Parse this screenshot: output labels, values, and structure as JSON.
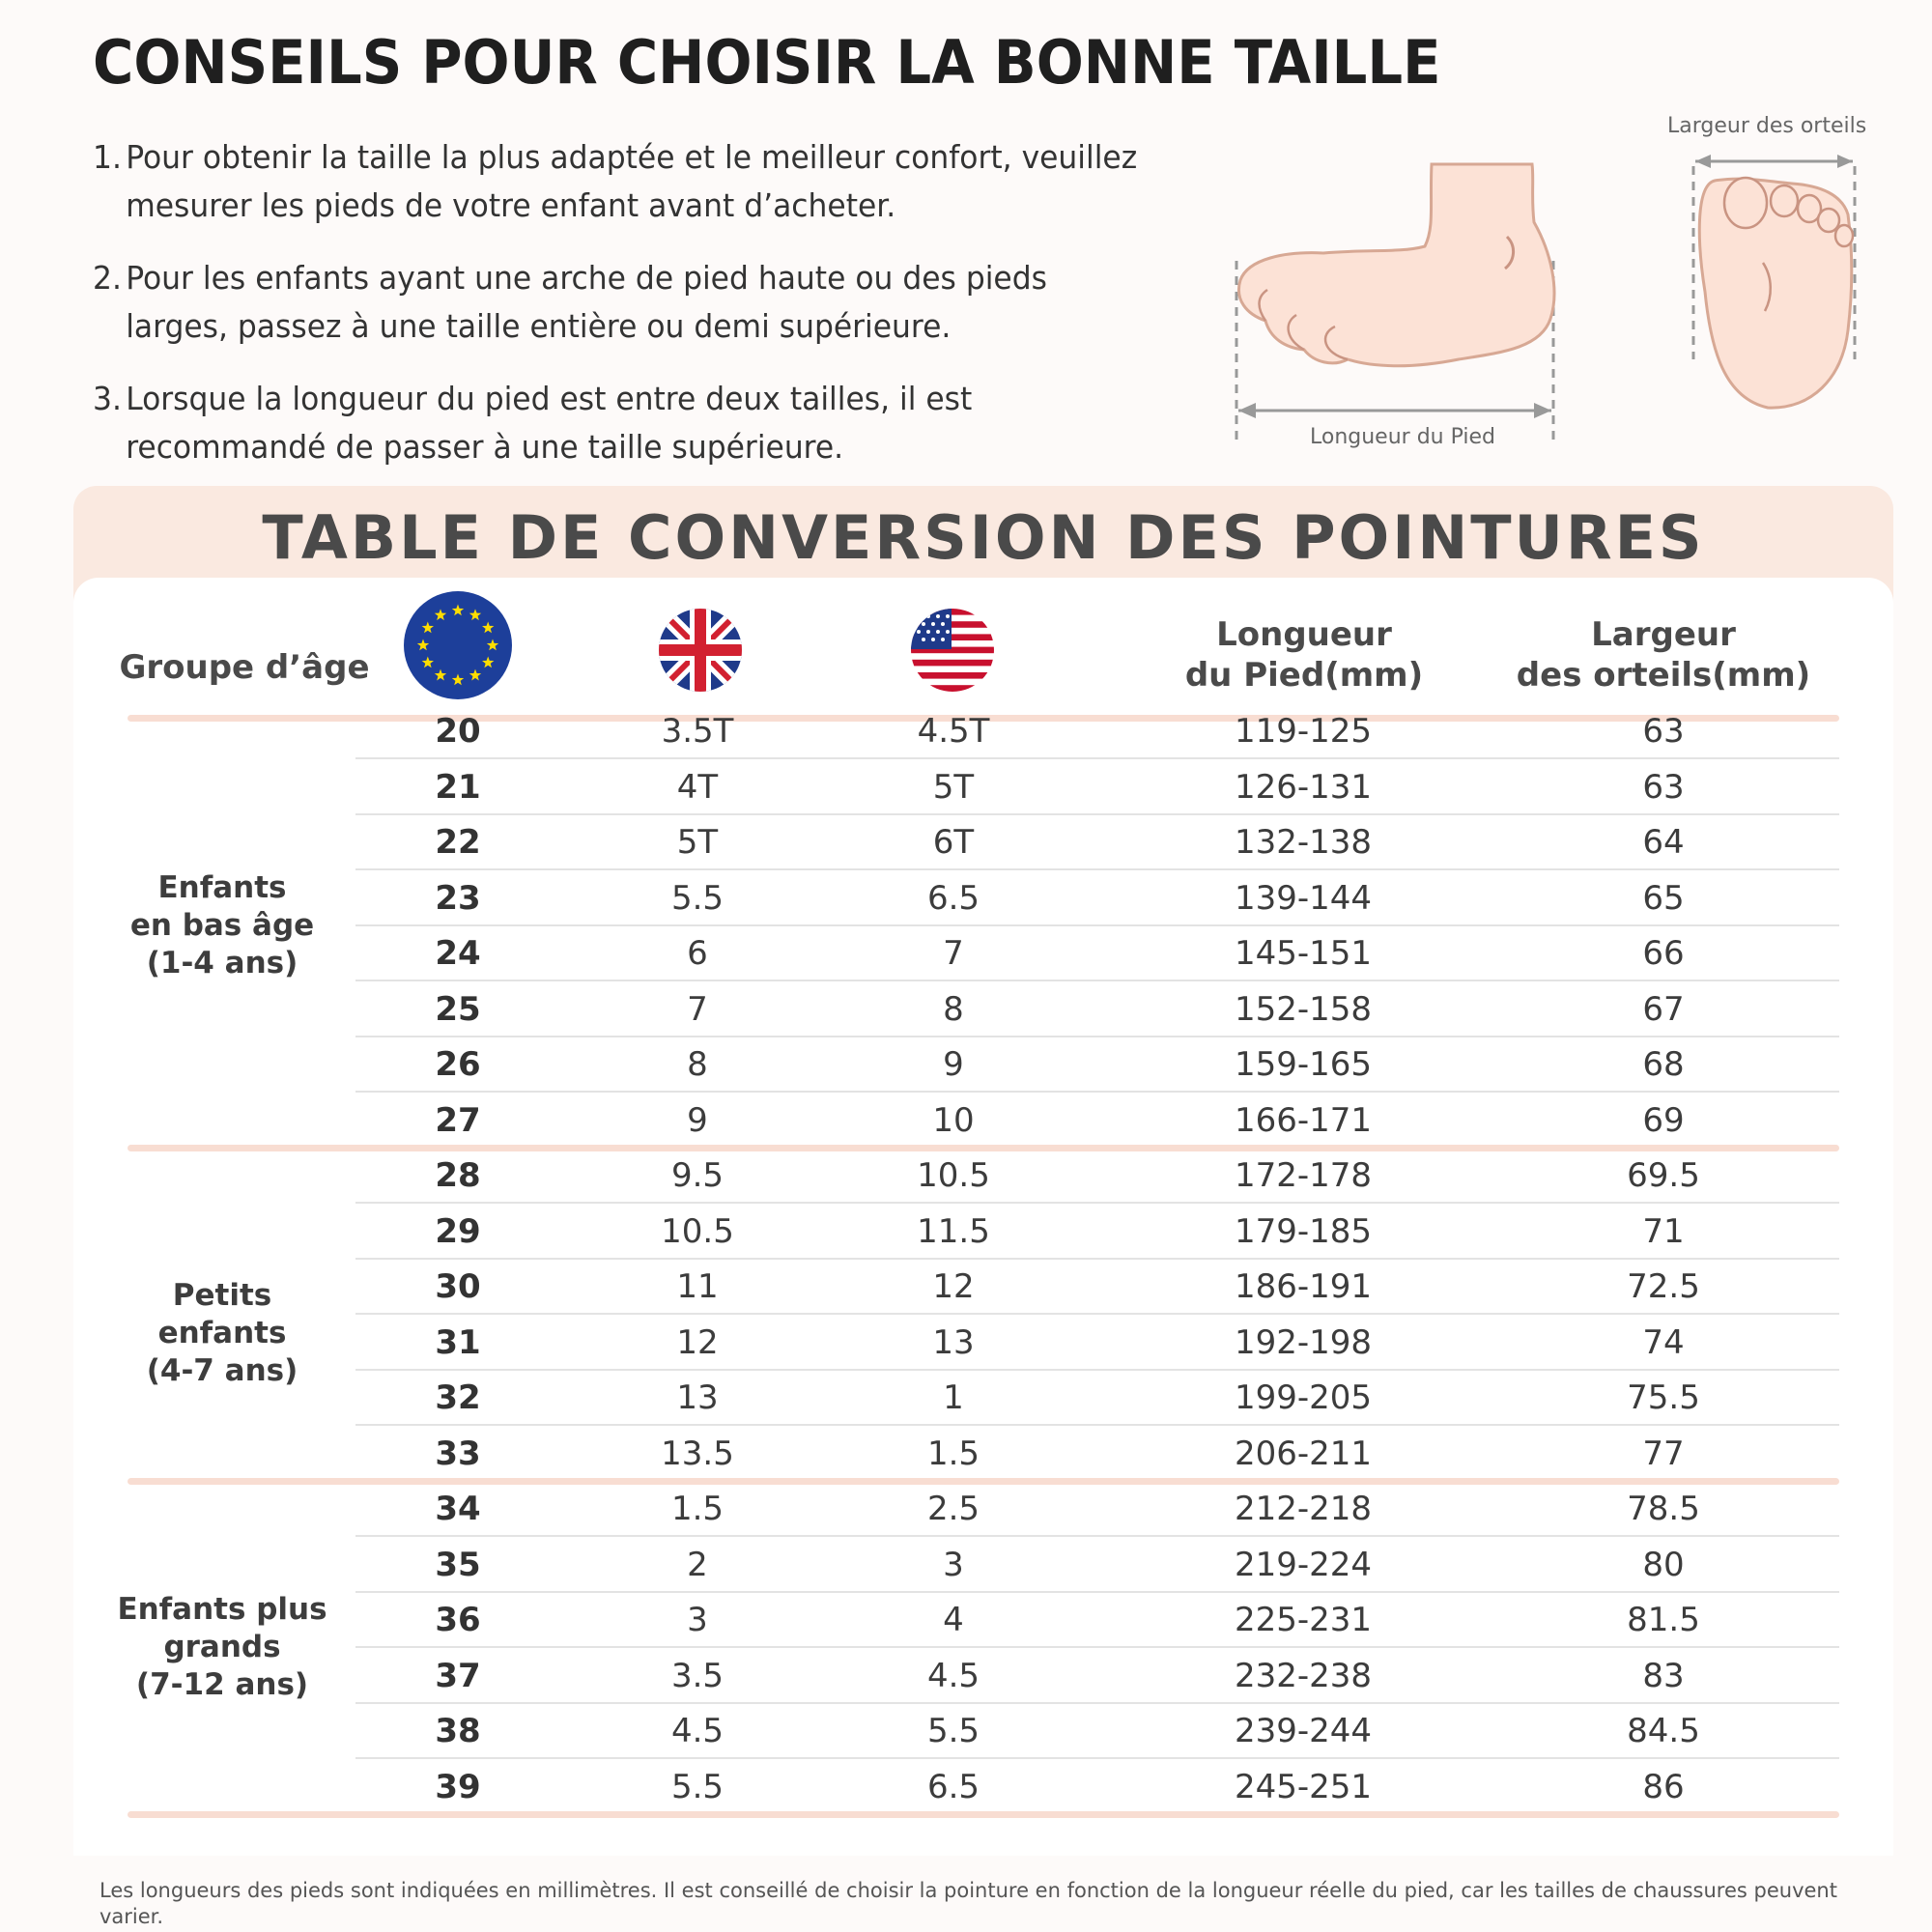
{
  "header": {
    "title": "CONSEILS POUR CHOISIR LA BONNE TAILLE",
    "tips": [
      {
        "num": "1.",
        "text": "Pour obtenir la taille la plus adaptée et le meilleur confort, veuillez mesurer les pieds de votre enfant avant d’acheter."
      },
      {
        "num": "2.",
        "text": "Pour les enfants ayant une arche de pied haute ou des pieds larges, passez à une taille entière ou demi supérieure."
      },
      {
        "num": "3.",
        "text": "Lorsque la longueur du pied est entre deux tailles, il est recommandé de passer à une taille supérieure."
      }
    ]
  },
  "illustration": {
    "foot_length_label": "Longueur du Pied",
    "toe_width_label": "Largeur des orteils"
  },
  "table": {
    "title": "TABLE DE CONVERSION DES POINTURES",
    "headers": {
      "age_group": "Groupe d’âge",
      "eu_icon": "eu-flag-icon",
      "uk_icon": "uk-flag-icon",
      "us_icon": "us-flag-icon",
      "foot_length": [
        "Longueur",
        "du Pied(mm)"
      ],
      "toe_width": [
        "Largeur",
        "des orteils(mm)"
      ]
    },
    "groups": [
      {
        "label": [
          "Enfants",
          "en bas âge",
          "(1-4 ans)"
        ],
        "rows": [
          {
            "eu": "20",
            "uk": "3.5T",
            "us": "4.5T",
            "length": "119-125",
            "width": "63"
          },
          {
            "eu": "21",
            "uk": "4T",
            "us": "5T",
            "length": "126-131",
            "width": "63"
          },
          {
            "eu": "22",
            "uk": "5T",
            "us": "6T",
            "length": "132-138",
            "width": "64"
          },
          {
            "eu": "23",
            "uk": "5.5",
            "us": "6.5",
            "length": "139-144",
            "width": "65"
          },
          {
            "eu": "24",
            "uk": "6",
            "us": "7",
            "length": "145-151",
            "width": "66"
          },
          {
            "eu": "25",
            "uk": "7",
            "us": "8",
            "length": "152-158",
            "width": "67"
          },
          {
            "eu": "26",
            "uk": "8",
            "us": "9",
            "length": "159-165",
            "width": "68"
          },
          {
            "eu": "27",
            "uk": "9",
            "us": "10",
            "length": "166-171",
            "width": "69"
          }
        ]
      },
      {
        "label": [
          "Petits enfants",
          "(4-7 ans)"
        ],
        "rows": [
          {
            "eu": "28",
            "uk": "9.5",
            "us": "10.5",
            "length": "172-178",
            "width": "69.5"
          },
          {
            "eu": "29",
            "uk": "10.5",
            "us": "11.5",
            "length": "179-185",
            "width": "71"
          },
          {
            "eu": "30",
            "uk": "11",
            "us": "12",
            "length": "186-191",
            "width": "72.5"
          },
          {
            "eu": "31",
            "uk": "12",
            "us": "13",
            "length": "192-198",
            "width": "74"
          },
          {
            "eu": "32",
            "uk": "13",
            "us": "1",
            "length": "199-205",
            "width": "75.5"
          },
          {
            "eu": "33",
            "uk": "13.5",
            "us": "1.5",
            "length": "206-211",
            "width": "77"
          }
        ]
      },
      {
        "label": [
          "Enfants plus",
          "grands",
          "(7-12 ans)"
        ],
        "rows": [
          {
            "eu": "34",
            "uk": "1.5",
            "us": "2.5",
            "length": "212-218",
            "width": "78.5"
          },
          {
            "eu": "35",
            "uk": "2",
            "us": "3",
            "length": "219-224",
            "width": "80"
          },
          {
            "eu": "36",
            "uk": "3",
            "us": "4",
            "length": "225-231",
            "width": "81.5"
          },
          {
            "eu": "37",
            "uk": "3.5",
            "us": "4.5",
            "length": "232-238",
            "width": "83"
          },
          {
            "eu": "38",
            "uk": "4.5",
            "us": "5.5",
            "length": "239-244",
            "width": "84.5"
          },
          {
            "eu": "39",
            "uk": "5.5",
            "us": "6.5",
            "length": "245-251",
            "width": "86"
          }
        ]
      }
    ]
  },
  "footnote": "Les longueurs des pieds sont indiquées en millimètres. Il est conseillé de choisir la pointure en fonction de la longueur réelle du pied, car les tailles de chaussures peuvent varier."
}
